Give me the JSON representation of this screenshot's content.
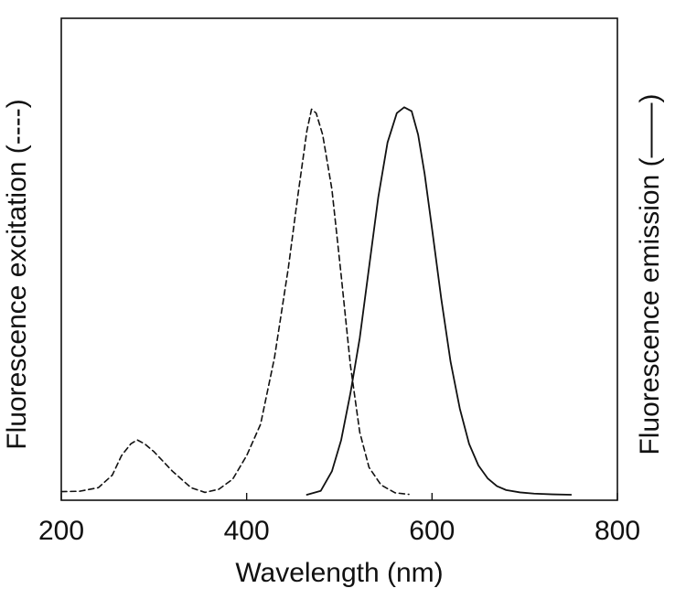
{
  "chart_data": {
    "type": "line",
    "title": "",
    "xlabel": "Wavelength (nm)",
    "ylabel_left": "Fluorescence excitation (----)",
    "ylabel_right": "Fluorescence emission (——)",
    "xlim": [
      200,
      800
    ],
    "ylim": [
      0,
      1
    ],
    "x_ticks": [
      {
        "value": 200,
        "label": "200"
      },
      {
        "value": 400,
        "label": "400"
      },
      {
        "value": 600,
        "label": "600"
      },
      {
        "value": 800,
        "label": "800"
      }
    ],
    "grid": false,
    "legend": "none",
    "series": [
      {
        "style": "dashed",
        "color": "#111111",
        "points": [
          [
            200,
            0.008
          ],
          [
            220,
            0.009
          ],
          [
            240,
            0.018
          ],
          [
            255,
            0.05
          ],
          [
            265,
            0.1
          ],
          [
            275,
            0.13
          ],
          [
            282,
            0.14
          ],
          [
            290,
            0.13
          ],
          [
            300,
            0.11
          ],
          [
            320,
            0.06
          ],
          [
            340,
            0.018
          ],
          [
            355,
            0.006
          ],
          [
            370,
            0.014
          ],
          [
            385,
            0.04
          ],
          [
            400,
            0.1
          ],
          [
            415,
            0.18
          ],
          [
            430,
            0.35
          ],
          [
            445,
            0.58
          ],
          [
            455,
            0.76
          ],
          [
            465,
            0.93
          ],
          [
            470,
            0.985
          ],
          [
            475,
            0.975
          ],
          [
            482,
            0.92
          ],
          [
            492,
            0.78
          ],
          [
            502,
            0.56
          ],
          [
            512,
            0.33
          ],
          [
            522,
            0.16
          ],
          [
            532,
            0.07
          ],
          [
            545,
            0.025
          ],
          [
            560,
            0.005
          ],
          [
            575,
            0.001
          ]
        ]
      },
      {
        "style": "solid",
        "color": "#111111",
        "points": [
          [
            465,
            0.0
          ],
          [
            480,
            0.01
          ],
          [
            492,
            0.06
          ],
          [
            502,
            0.14
          ],
          [
            512,
            0.26
          ],
          [
            522,
            0.4
          ],
          [
            532,
            0.58
          ],
          [
            542,
            0.76
          ],
          [
            552,
            0.9
          ],
          [
            562,
            0.975
          ],
          [
            570,
            0.99
          ],
          [
            578,
            0.98
          ],
          [
            585,
            0.92
          ],
          [
            592,
            0.82
          ],
          [
            600,
            0.68
          ],
          [
            610,
            0.5
          ],
          [
            620,
            0.34
          ],
          [
            630,
            0.22
          ],
          [
            640,
            0.13
          ],
          [
            650,
            0.075
          ],
          [
            660,
            0.042
          ],
          [
            670,
            0.022
          ],
          [
            680,
            0.012
          ],
          [
            695,
            0.006
          ],
          [
            710,
            0.003
          ],
          [
            730,
            0.001
          ],
          [
            750,
            0.0
          ]
        ]
      }
    ]
  }
}
